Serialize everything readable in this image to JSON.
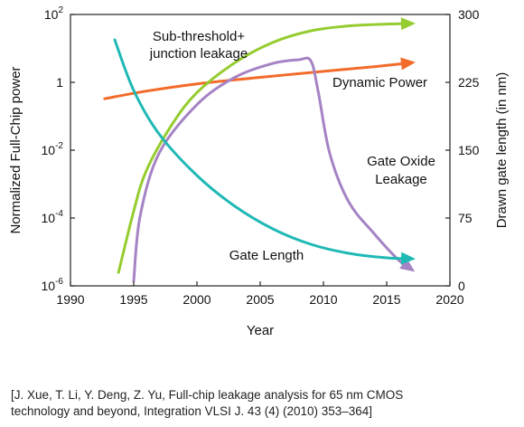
{
  "chart_data": {
    "type": "line",
    "x_axis": {
      "label": "Year",
      "range": [
        1990,
        2020
      ],
      "ticks": [
        1990,
        1995,
        2000,
        2005,
        2010,
        2015,
        2020
      ]
    },
    "y_left": {
      "label": "Normalized Full-Chip power",
      "scale": "log",
      "range": [
        1e-06,
        100
      ],
      "ticks": [
        {
          "base": "10",
          "exp": "2"
        },
        {
          "base": "1",
          "exp": ""
        },
        {
          "base": "10",
          "exp": "-2"
        },
        {
          "base": "10",
          "exp": "-4"
        },
        {
          "base": "10",
          "exp": "-6"
        }
      ]
    },
    "y_right": {
      "label": "Drawn gate length (in nm)",
      "range": [
        0,
        300
      ],
      "ticks": [
        0,
        75,
        150,
        225,
        300
      ]
    },
    "series": [
      {
        "name": "Dynamic Power",
        "axis": "left",
        "color": "#f26b2a",
        "points": [
          [
            1992.7,
            0.33
          ],
          [
            1996,
            0.55
          ],
          [
            2000,
            0.9
          ],
          [
            2005,
            1.4
          ],
          [
            2010,
            2.1
          ],
          [
            2014,
            2.9
          ],
          [
            2017,
            3.8
          ]
        ]
      },
      {
        "name": "Sub-threshold+ junction leakage",
        "axis": "left",
        "color": "#95cc2f",
        "points": [
          [
            1993.8,
            2.5e-06
          ],
          [
            1995,
            0.00016
          ],
          [
            1996,
            0.0025
          ],
          [
            1998,
            0.055
          ],
          [
            2000,
            0.5
          ],
          [
            2003,
            3.8
          ],
          [
            2006,
            15
          ],
          [
            2009,
            33
          ],
          [
            2012,
            46
          ],
          [
            2015,
            52
          ],
          [
            2017,
            54
          ]
        ]
      },
      {
        "name": "Gate Oxide Leakage",
        "axis": "left",
        "color": "#a583c4",
        "points": [
          [
            1995,
            1.4e-06
          ],
          [
            1995.5,
            0.00011
          ],
          [
            1997,
            0.008
          ],
          [
            2000,
            0.22
          ],
          [
            2003,
            1.4
          ],
          [
            2006,
            3.6
          ],
          [
            2008,
            4.6
          ],
          [
            2009,
            4.3
          ],
          [
            2009.6,
            0.5
          ],
          [
            2010.5,
            0.008
          ],
          [
            2012,
            0.0003
          ],
          [
            2014,
            3.5e-05
          ],
          [
            2016,
            5.5e-06
          ],
          [
            2017,
            3e-06
          ]
        ]
      },
      {
        "name": "Gate Length",
        "axis": "right",
        "color": "#1fb9b5",
        "points": [
          [
            1993.5,
            272
          ],
          [
            1995,
            216
          ],
          [
            1997,
            168
          ],
          [
            2000,
            122
          ],
          [
            2003,
            88
          ],
          [
            2006,
            63
          ],
          [
            2009,
            46
          ],
          [
            2012,
            36
          ],
          [
            2015,
            31
          ],
          [
            2017,
            30
          ]
        ]
      }
    ],
    "annotations": [
      {
        "lines": [
          "Sub-threshold+",
          "junction leakage"
        ]
      },
      {
        "lines": [
          "Dynamic Power"
        ]
      },
      {
        "lines": [
          "Gate Oxide",
          "Leakage"
        ]
      },
      {
        "lines": [
          "Gate Length"
        ]
      }
    ],
    "grid": false,
    "legend": "none"
  },
  "citation": {
    "line1": "[J. Xue, T. Li, Y. Deng, Z. Yu, Full-chip leakage analysis for 65 nm CMOS",
    "line2": "technology and beyond, Integration VLSI J. 43 (4) (2010) 353–364]"
  }
}
